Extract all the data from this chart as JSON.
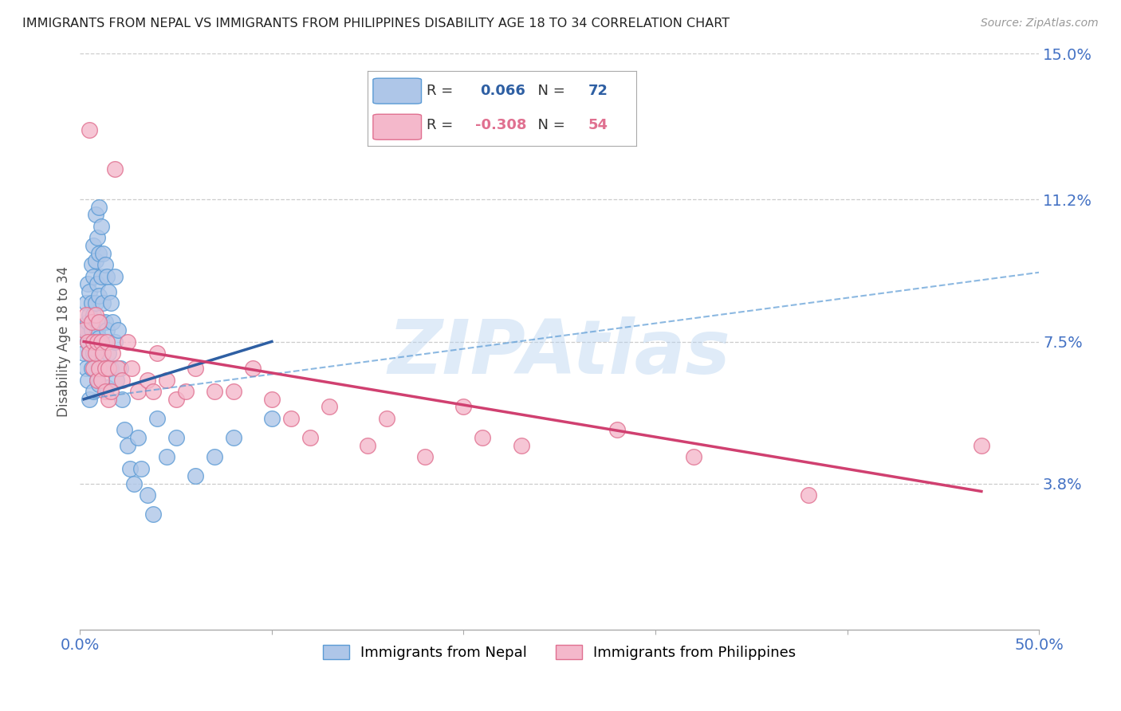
{
  "title": "IMMIGRANTS FROM NEPAL VS IMMIGRANTS FROM PHILIPPINES DISABILITY AGE 18 TO 34 CORRELATION CHART",
  "source": "Source: ZipAtlas.com",
  "ylabel": "Disability Age 18 to 34",
  "xlim": [
    0.0,
    0.5
  ],
  "ylim": [
    0.0,
    0.15
  ],
  "ytick_values": [
    0.15,
    0.112,
    0.075,
    0.038
  ],
  "xtick_positions": [
    0.0,
    0.1,
    0.2,
    0.3,
    0.4,
    0.5
  ],
  "grid_color": "#cccccc",
  "background_color": "#ffffff",
  "title_color": "#222222",
  "axis_label_color": "#555555",
  "tick_label_color": "#4472c4",
  "nepal_color": "#aec6e8",
  "nepal_edge_color": "#5b9bd5",
  "philippines_color": "#f4b8cb",
  "philippines_edge_color": "#e07090",
  "nepal_R": 0.066,
  "nepal_N": 72,
  "philippines_R": -0.308,
  "philippines_N": 54,
  "nepal_line_color": "#2e5fa3",
  "philippines_line_color": "#d04070",
  "dashed_line_color": "#5b9bd5",
  "nepal_scatter_x": [
    0.002,
    0.002,
    0.003,
    0.003,
    0.003,
    0.004,
    0.004,
    0.004,
    0.004,
    0.005,
    0.005,
    0.005,
    0.005,
    0.006,
    0.006,
    0.006,
    0.006,
    0.007,
    0.007,
    0.007,
    0.007,
    0.007,
    0.008,
    0.008,
    0.008,
    0.008,
    0.009,
    0.009,
    0.009,
    0.009,
    0.01,
    0.01,
    0.01,
    0.01,
    0.01,
    0.011,
    0.011,
    0.011,
    0.012,
    0.012,
    0.012,
    0.013,
    0.013,
    0.014,
    0.014,
    0.014,
    0.015,
    0.015,
    0.016,
    0.016,
    0.017,
    0.018,
    0.018,
    0.019,
    0.02,
    0.021,
    0.022,
    0.023,
    0.025,
    0.026,
    0.028,
    0.03,
    0.032,
    0.035,
    0.038,
    0.04,
    0.045,
    0.05,
    0.06,
    0.07,
    0.08,
    0.1
  ],
  "nepal_scatter_y": [
    0.077,
    0.072,
    0.085,
    0.078,
    0.068,
    0.09,
    0.08,
    0.075,
    0.065,
    0.088,
    0.082,
    0.072,
    0.06,
    0.095,
    0.085,
    0.078,
    0.068,
    0.1,
    0.092,
    0.082,
    0.072,
    0.062,
    0.108,
    0.096,
    0.085,
    0.073,
    0.102,
    0.09,
    0.078,
    0.065,
    0.11,
    0.098,
    0.087,
    0.076,
    0.064,
    0.105,
    0.092,
    0.08,
    0.098,
    0.085,
    0.07,
    0.095,
    0.08,
    0.092,
    0.078,
    0.063,
    0.088,
    0.072,
    0.085,
    0.068,
    0.08,
    0.092,
    0.075,
    0.065,
    0.078,
    0.068,
    0.06,
    0.052,
    0.048,
    0.042,
    0.038,
    0.05,
    0.042,
    0.035,
    0.03,
    0.055,
    0.045,
    0.05,
    0.04,
    0.045,
    0.05,
    0.055
  ],
  "philippines_scatter_x": [
    0.002,
    0.003,
    0.004,
    0.005,
    0.005,
    0.006,
    0.007,
    0.007,
    0.008,
    0.008,
    0.009,
    0.009,
    0.01,
    0.01,
    0.011,
    0.011,
    0.012,
    0.013,
    0.013,
    0.014,
    0.015,
    0.015,
    0.016,
    0.017,
    0.018,
    0.02,
    0.022,
    0.025,
    0.027,
    0.03,
    0.035,
    0.038,
    0.04,
    0.045,
    0.05,
    0.055,
    0.06,
    0.07,
    0.08,
    0.09,
    0.1,
    0.11,
    0.12,
    0.13,
    0.15,
    0.16,
    0.18,
    0.2,
    0.21,
    0.23,
    0.28,
    0.32,
    0.38,
    0.47
  ],
  "philippines_scatter_y": [
    0.078,
    0.082,
    0.075,
    0.13,
    0.072,
    0.08,
    0.075,
    0.068,
    0.082,
    0.072,
    0.075,
    0.065,
    0.08,
    0.068,
    0.075,
    0.065,
    0.072,
    0.068,
    0.062,
    0.075,
    0.068,
    0.06,
    0.062,
    0.072,
    0.12,
    0.068,
    0.065,
    0.075,
    0.068,
    0.062,
    0.065,
    0.062,
    0.072,
    0.065,
    0.06,
    0.062,
    0.068,
    0.062,
    0.062,
    0.068,
    0.06,
    0.055,
    0.05,
    0.058,
    0.048,
    0.055,
    0.045,
    0.058,
    0.05,
    0.048,
    0.052,
    0.045,
    0.035,
    0.048
  ],
  "nepal_line_x": [
    0.002,
    0.1
  ],
  "nepal_line_y": [
    0.06,
    0.075
  ],
  "philippines_line_x": [
    0.002,
    0.47
  ],
  "philippines_line_y": [
    0.075,
    0.036
  ],
  "dashed_line_x": [
    0.002,
    0.5
  ],
  "dashed_line_y": [
    0.06,
    0.093
  ],
  "watermark": "ZIPAtlas",
  "nepal_legend": "Immigrants from Nepal",
  "philippines_legend": "Immigrants from Philippines"
}
